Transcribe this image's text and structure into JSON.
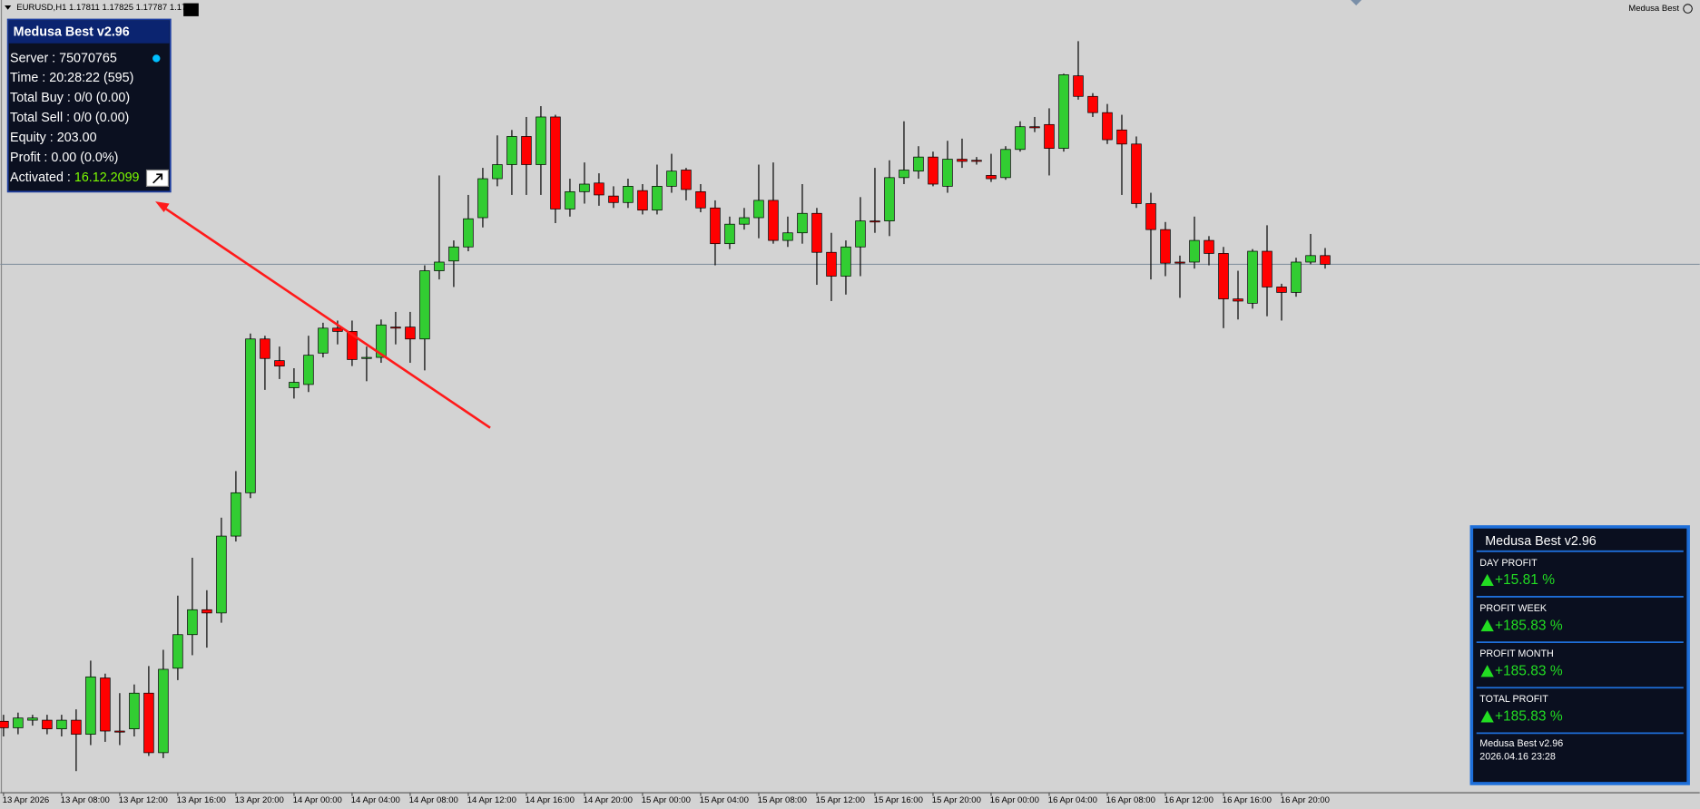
{
  "window": {
    "symbol_header": "EURUSD,H1  1.17811 1.17825 1.17787 1.17",
    "expert_label": "Medusa Best"
  },
  "info_panel": {
    "title": "Medusa Best v2.96",
    "rows": [
      "Server : 75070765",
      "Time : 20:28:22 (595)",
      "Total Buy : 0/0 (0.00)",
      "Total Sell : 0/0 (0.00)",
      "Equity : 203.00",
      "Profit : 0.00 (0.0%)"
    ],
    "activated_label": "Activated : ",
    "activated_date": "16.12.2099"
  },
  "profit_panel": {
    "title": "Medusa Best v2.96",
    "items": [
      {
        "label": "DAY PROFIT",
        "value": "+15.81 %"
      },
      {
        "label": "PROFIT WEEK",
        "value": "+185.83 %"
      },
      {
        "label": "PROFIT MONTH",
        "value": "+185.83 %"
      },
      {
        "label": "TOTAL PROFIT",
        "value": "+185.83 %"
      }
    ],
    "footer": [
      "Medusa Best v2.96",
      "2026.04.16 23:28"
    ]
  },
  "chart_data": {
    "type": "candlestick",
    "categories": [
      "13 Apr 2026",
      null,
      null,
      null,
      "13 Apr 08:00",
      null,
      null,
      null,
      "13 Apr 12:00",
      null,
      null,
      null,
      "13 Apr 16:00",
      null,
      null,
      null,
      "13 Apr 20:00",
      null,
      null,
      null,
      "14 Apr 00:00",
      null,
      null,
      null,
      "14 Apr 04:00",
      null,
      null,
      null,
      "14 Apr 08:00",
      null,
      null,
      null,
      "14 Apr 12:00",
      null,
      null,
      null,
      "14 Apr 16:00",
      null,
      null,
      null,
      "14 Apr 20:00",
      null,
      null,
      null,
      "15 Apr 00:00",
      null,
      null,
      null,
      "15 Apr 04:00",
      null,
      null,
      null,
      "15 Apr 08:00",
      null,
      null,
      null,
      "15 Apr 12:00",
      null,
      null,
      null,
      "15 Apr 16:00",
      null,
      null,
      null,
      "15 Apr 20:00",
      null,
      null,
      null,
      "16 Apr 00:00",
      null,
      null,
      null,
      "16 Apr 04:00",
      null,
      null,
      null,
      "16 Apr 08:00",
      null,
      null,
      null,
      "16 Apr 12:00",
      null,
      null,
      null,
      "16 Apr 16:00",
      null,
      null,
      null,
      "16 Apr 20:00",
      null,
      null,
      null
    ],
    "open": [
      1.16951,
      1.16939,
      1.16953,
      1.16953,
      1.16937,
      1.16953,
      1.16927,
      1.17031,
      1.16933,
      1.16937,
      1.17003,
      1.16893,
      1.17049,
      1.17111,
      1.17157,
      1.17151,
      1.17293,
      1.17373,
      1.17657,
      1.17617,
      1.17567,
      1.17573,
      1.17631,
      1.17677,
      1.17671,
      1.17621,
      1.17623,
      1.17679,
      1.17679,
      1.17657,
      1.17783,
      1.17801,
      1.17827,
      1.17881,
      1.17953,
      1.17979,
      1.18031,
      1.17979,
      1.18067,
      1.17897,
      1.17929,
      1.17945,
      1.17921,
      1.17909,
      1.17931,
      1.17895,
      1.17939,
      1.17969,
      1.17929,
      1.17899,
      1.17833,
      1.17869,
      1.17881,
      1.17913,
      1.17839,
      1.17853,
      1.17889,
      1.17817,
      1.17773,
      1.17827,
      1.17875,
      1.17875,
      1.17955,
      1.17967,
      1.17993,
      1.17939,
      1.17989,
      1.17987,
      1.17959,
      1.17955,
      1.18007,
      1.18049,
      1.18053,
      1.18009,
      1.18143,
      1.18105,
      1.18075,
      1.18043,
      1.18017,
      1.17907,
      1.17859,
      1.17799,
      1.17799,
      1.17839,
      1.17815,
      1.17731,
      1.17723,
      1.17819,
      1.17753,
      1.17743,
      1.17799,
      1.17811
    ],
    "high": [
      1.16963,
      1.16967,
      1.16963,
      1.16963,
      1.16963,
      1.16973,
      1.17063,
      1.17039,
      1.17003,
      1.17019,
      1.17053,
      1.17083,
      1.17183,
      1.17253,
      1.17193,
      1.17327,
      1.17413,
      1.17667,
      1.17663,
      1.17643,
      1.17603,
      1.17663,
      1.17687,
      1.17691,
      1.17691,
      1.17643,
      1.17693,
      1.17707,
      1.17707,
      1.17793,
      1.17959,
      1.17839,
      1.17923,
      1.17973,
      1.18033,
      1.18043,
      1.18067,
      1.18087,
      1.18071,
      1.17953,
      1.17983,
      1.17963,
      1.17939,
      1.17953,
      1.17943,
      1.17979,
      1.17999,
      1.17973,
      1.17943,
      1.17913,
      1.17883,
      1.17899,
      1.17979,
      1.17983,
      1.17883,
      1.17943,
      1.17899,
      1.17853,
      1.17839,
      1.17919,
      1.17973,
      1.17987,
      1.18059,
      1.18013,
      1.18003,
      1.18023,
      1.18027,
      1.17993,
      1.17999,
      1.18013,
      1.18059,
      1.18067,
      1.18083,
      1.18147,
      1.18207,
      1.18111,
      1.18091,
      1.18071,
      1.18031,
      1.17927,
      1.17873,
      1.17811,
      1.17883,
      1.17847,
      1.17827,
      1.17783,
      1.17823,
      1.17867,
      1.17759,
      1.17807,
      1.17851,
      1.17825
    ],
    "low": [
      1.16923,
      1.16927,
      1.16943,
      1.16927,
      1.16923,
      1.16859,
      1.16907,
      1.16913,
      1.16907,
      1.16923,
      1.16887,
      1.16883,
      1.17027,
      1.17073,
      1.17087,
      1.17133,
      1.17283,
      1.17363,
      1.17563,
      1.17583,
      1.17547,
      1.17559,
      1.17623,
      1.17647,
      1.17607,
      1.17579,
      1.17613,
      1.17647,
      1.17613,
      1.17599,
      1.17767,
      1.17753,
      1.17819,
      1.17863,
      1.17939,
      1.17923,
      1.17923,
      1.17923,
      1.17871,
      1.17883,
      1.17907,
      1.17903,
      1.17899,
      1.17899,
      1.17887,
      1.17887,
      1.17927,
      1.17913,
      1.17891,
      1.17793,
      1.17823,
      1.17859,
      1.17843,
      1.17833,
      1.17827,
      1.17833,
      1.17757,
      1.17727,
      1.17739,
      1.17773,
      1.17853,
      1.17847,
      1.17943,
      1.17953,
      1.17939,
      1.17927,
      1.17973,
      1.17979,
      1.17947,
      1.17951,
      1.18003,
      1.18039,
      1.17959,
      1.18003,
      1.18099,
      1.18067,
      1.18017,
      1.17923,
      1.17899,
      1.17767,
      1.17773,
      1.17733,
      1.17787,
      1.17793,
      1.17677,
      1.17693,
      1.17713,
      1.17699,
      1.17691,
      1.17735,
      1.17795,
      1.17787
    ],
    "close": [
      1.16939,
      1.16957,
      1.16957,
      1.16937,
      1.16953,
      1.16927,
      1.17033,
      1.16933,
      1.16933,
      1.17003,
      1.16893,
      1.17047,
      1.17111,
      1.17157,
      1.17151,
      1.17293,
      1.17373,
      1.17657,
      1.17621,
      1.17607,
      1.17577,
      1.17627,
      1.17677,
      1.17671,
      1.17619,
      1.17623,
      1.17683,
      1.17679,
      1.17657,
      1.17783,
      1.17799,
      1.17827,
      1.17879,
      1.17953,
      1.17979,
      1.18031,
      1.17979,
      1.18067,
      1.17897,
      1.17929,
      1.17943,
      1.17923,
      1.17909,
      1.17939,
      1.17895,
      1.17939,
      1.17967,
      1.17933,
      1.17899,
      1.17833,
      1.17869,
      1.17881,
      1.17913,
      1.17839,
      1.17853,
      1.17889,
      1.17817,
      1.17773,
      1.17827,
      1.17875,
      1.17875,
      1.17955,
      1.17969,
      1.17993,
      1.17943,
      1.17989,
      1.17985,
      1.17987,
      1.17953,
      1.18007,
      1.18049,
      1.18049,
      1.18009,
      1.18145,
      1.18105,
      1.18075,
      1.18025,
      1.18017,
      1.17907,
      1.17859,
      1.17797,
      1.17799,
      1.17839,
      1.17815,
      1.17731,
      1.17727,
      1.17819,
      1.17753,
      1.17743,
      1.17799,
      1.17811,
      1.17795
    ],
    "ylim": [
      1.16819,
      1.18283
    ],
    "up_color": "#32cd32",
    "down_color": "#ff0000"
  }
}
